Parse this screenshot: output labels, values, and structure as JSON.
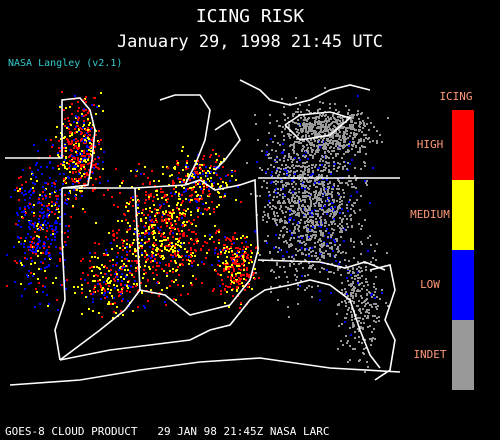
{
  "header": {
    "title": "ICING RISK",
    "subtitle": "January 29, 1998 21:45 UTC",
    "version": "NASA Langley (v2.1)"
  },
  "legend": {
    "title": "ICING",
    "items": [
      {
        "label": "HIGH",
        "color": "#ff0000"
      },
      {
        "label": "MEDIUM",
        "color": "#ffff00"
      },
      {
        "label": "LOW",
        "color": "#0000ff"
      },
      {
        "label": "INDET",
        "color": "#999999"
      }
    ]
  },
  "footer": "GOES-8 CLOUD PRODUCT   29 JAN 98 21:45Z NASA LARC"
}
